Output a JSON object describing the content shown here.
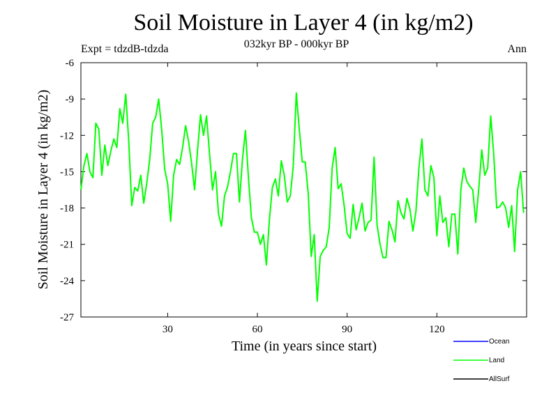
{
  "chart_data": {
    "type": "line",
    "title": "Soil Moisture in Layer 4 (in kg/m2)",
    "subtitle": "032kyr BP - 000kyr BP",
    "experiment_label": "Expt = tdzdB-tdzda",
    "season_label": "Ann",
    "xlabel": "Time (in years since start)",
    "ylabel": "Soil Moisture in Layer 4 (in kg/m2)",
    "xlim": [
      1,
      150
    ],
    "ylim": [
      -27,
      -6
    ],
    "x_ticks": [
      30,
      60,
      90,
      120
    ],
    "y_ticks": [
      -6,
      -9,
      -12,
      -15,
      -18,
      -21,
      -24,
      -27
    ],
    "legend": [
      {
        "name": "Ocean",
        "color": "#0000ff"
      },
      {
        "name": "Land",
        "color": "#00ff00"
      },
      {
        "name": "AllSurf",
        "color": "#000000"
      }
    ],
    "series": [
      {
        "name": "Land",
        "color": "#00ff00",
        "x_start": 1,
        "x_step": 1,
        "values": [
          -16.5,
          -14.5,
          -13.5,
          -15.0,
          -15.5,
          -11.0,
          -11.5,
          -15.3,
          -12.8,
          -14.5,
          -13.3,
          -12.3,
          -13.0,
          -9.8,
          -11.0,
          -8.6,
          -12.5,
          -17.8,
          -16.3,
          -16.6,
          -15.3,
          -17.6,
          -16.0,
          -14.0,
          -11.0,
          -10.5,
          -9.0,
          -11.5,
          -14.8,
          -16.0,
          -19.1,
          -15.3,
          -14.0,
          -14.4,
          -13.0,
          -11.2,
          -12.5,
          -14.3,
          -16.5,
          -13.2,
          -10.3,
          -12.0,
          -10.4,
          -13.5,
          -16.5,
          -15.0,
          -18.5,
          -19.5,
          -17.0,
          -16.3,
          -15.0,
          -13.5,
          -13.5,
          -17.5,
          -14.0,
          -11.6,
          -15.5,
          -18.8,
          -20.0,
          -20.0,
          -21.0,
          -20.2,
          -22.7,
          -19.0,
          -16.3,
          -15.6,
          -17.0,
          -14.1,
          -15.3,
          -17.5,
          -17.0,
          -14.5,
          -8.5,
          -11.5,
          -14.2,
          -14.2,
          -16.8,
          -22.0,
          -20.2,
          -25.7,
          -22.0,
          -21.5,
          -21.2,
          -19.6,
          -14.7,
          -13.0,
          -16.4,
          -16.0,
          -17.8,
          -20.1,
          -20.5,
          -17.7,
          -19.8,
          -18.8,
          -17.6,
          -19.9,
          -19.2,
          -19.0,
          -13.8,
          -19.4,
          -21.0,
          -22.1,
          -22.1,
          -19.1,
          -19.8,
          -20.8,
          -17.4,
          -18.4,
          -18.9,
          -17.2,
          -18.1,
          -19.9,
          -18.3,
          -14.7,
          -12.3,
          -16.5,
          -17.0,
          -14.5,
          -15.5,
          -20.3,
          -17.0,
          -19.2,
          -18.8,
          -21.2,
          -18.5,
          -18.5,
          -21.8,
          -16.5,
          -14.7,
          -15.8,
          -16.2,
          -16.5,
          -19.2,
          -16.4,
          -13.2,
          -15.3,
          -14.7,
          -10.4,
          -13.5,
          -18.0,
          -17.9,
          -17.5,
          -18.0,
          -19.6,
          -17.8,
          -21.6,
          -16.5,
          -15.0,
          -18.4
        ]
      }
    ]
  }
}
